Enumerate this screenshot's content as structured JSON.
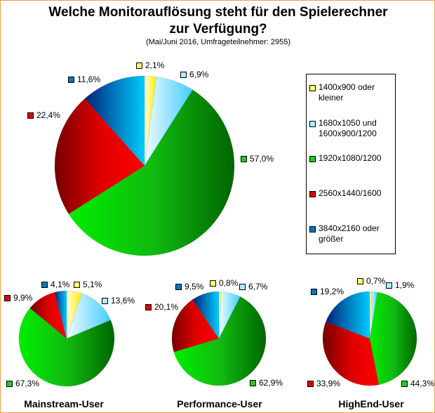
{
  "chart_data": [
    {
      "type": "pie",
      "title": "Welche Monitorauflösung steht für den Spielerechner",
      "title2": "zur Verfügung?",
      "subtitle": "(Mai/Juni 2016, Umfrageteilnehmer: 2955)",
      "categories": [
        "1400x900 oder kleiner",
        "1680x1050 und 1600x900/1200",
        "1920x1080/1200",
        "2560x1440/1600",
        "3840x2160 oder größer"
      ],
      "values": [
        2.1,
        6.9,
        57.0,
        22.4,
        11.6
      ],
      "labels": [
        "2,1%",
        "6,9%",
        "57,0%",
        "22,4%",
        "11,6%"
      ],
      "legend_position": "right"
    },
    {
      "type": "pie",
      "title": "Mainstream-User",
      "values": [
        5.1,
        13.6,
        67.3,
        9.9,
        4.1
      ],
      "labels": [
        "5,1%",
        "13,6%",
        "67,3%",
        "9,9%",
        "4,1%"
      ]
    },
    {
      "type": "pie",
      "title": "Performance-User",
      "values": [
        0.8,
        6.7,
        62.9,
        20.1,
        9.5
      ],
      "labels": [
        "0,8%",
        "6,7%",
        "62,9%",
        "20,1%",
        "9,5%"
      ]
    },
    {
      "type": "pie",
      "title": "HighEnd-User",
      "values": [
        0.7,
        1.9,
        44.3,
        33.9,
        19.2
      ],
      "labels": [
        "0,7%",
        "1,9%",
        "44,3%",
        "33,9%",
        "19,2%"
      ]
    }
  ],
  "legend": [
    {
      "line1": "1400x900 oder",
      "line2": "kleiner"
    },
    {
      "line1": "1680x1050 und",
      "line2": "1600x900/1200"
    },
    {
      "line1": "1920x1080/1200",
      "line2": ""
    },
    {
      "line1": "2560x1440/1600",
      "line2": ""
    },
    {
      "line1": "3840x2160 oder",
      "line2": "größer"
    }
  ],
  "colors": [
    "#ffff66",
    "#aaeeff",
    "#22cc22",
    "#dd0000",
    "#0099dd"
  ]
}
